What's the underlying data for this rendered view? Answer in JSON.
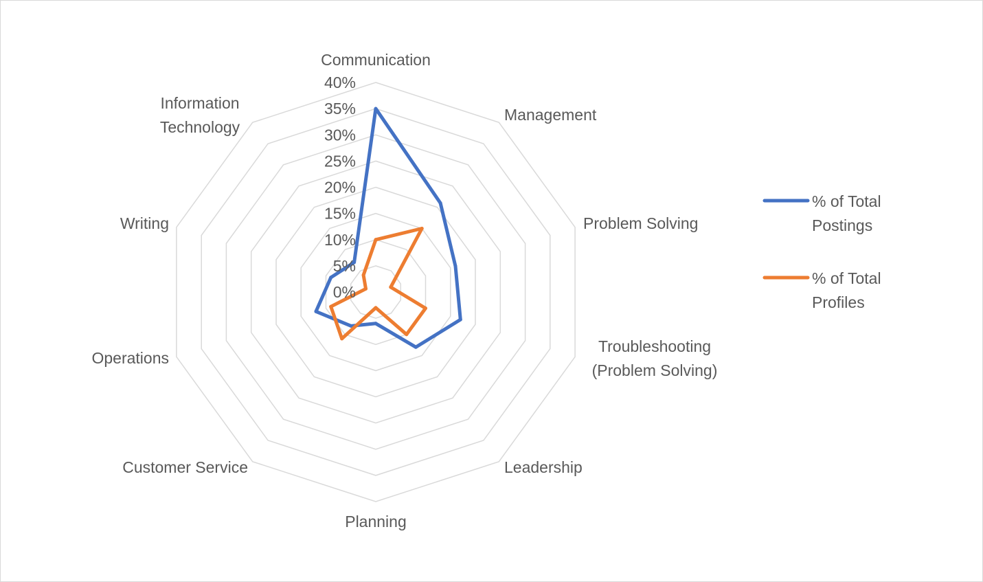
{
  "chart_data": {
    "type": "radar",
    "title": "",
    "categories": [
      [
        "Communication"
      ],
      [
        "Management"
      ],
      [
        "Problem Solving"
      ],
      [
        "Troubleshooting",
        "(Problem Solving)"
      ],
      [
        "Leadership"
      ],
      [
        "Planning"
      ],
      [
        "Customer Service"
      ],
      [
        "Operations"
      ],
      [
        "Writing"
      ],
      [
        "Information",
        "Technology"
      ]
    ],
    "r_ticks": [
      "0%",
      "5%",
      "10%",
      "15%",
      "20%",
      "25%",
      "30%",
      "35%",
      "40%"
    ],
    "r_range": [
      0,
      40
    ],
    "series": [
      {
        "name": [
          "% of Total",
          "Postings"
        ],
        "color": "#4472C4",
        "values": [
          35,
          21,
          16,
          17,
          13,
          6,
          8,
          12,
          9,
          7
        ]
      },
      {
        "name": [
          "% of Total",
          "Profiles"
        ],
        "color": "#ED7D31",
        "values": [
          10,
          15,
          3,
          10,
          10,
          3,
          11,
          9,
          2,
          4
        ]
      }
    ],
    "legend_position": "right"
  }
}
